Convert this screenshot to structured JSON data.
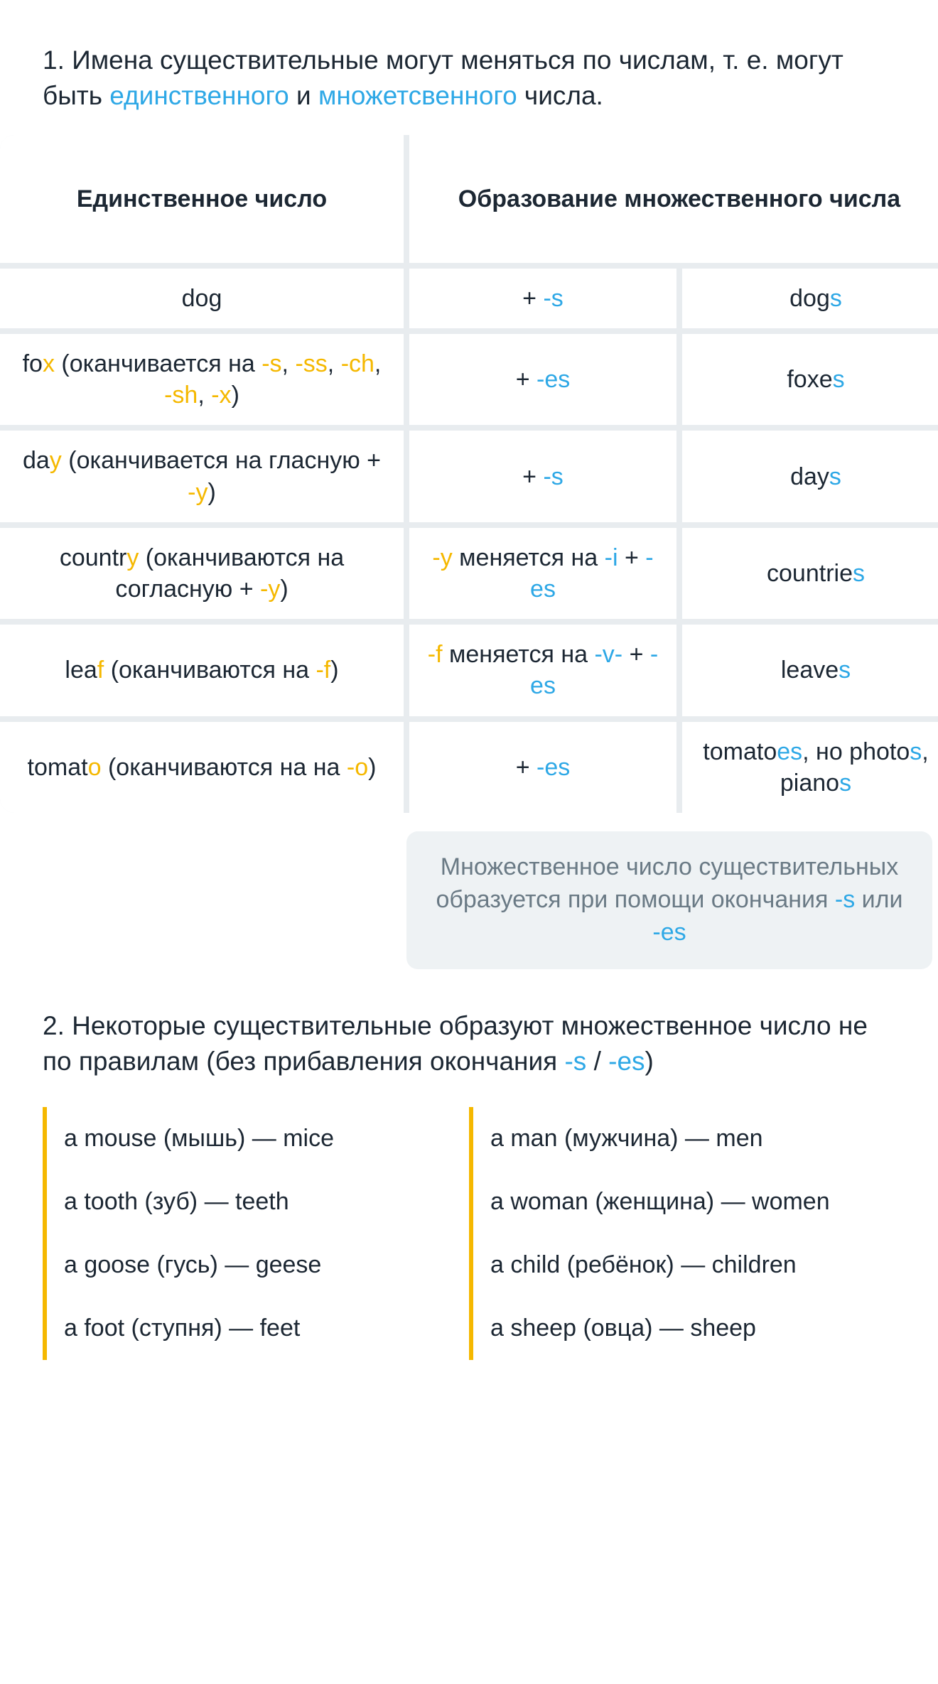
{
  "colors": {
    "highlight_blue": "#2ea8e6",
    "highlight_yellow": "#f5b800",
    "text": "#1c2733",
    "muted": "#6a7a85",
    "note_bg": "#eef2f4",
    "grid_gap": "#e8ecef",
    "bg": "#ffffff"
  },
  "intro": {
    "prefix": "1. Имена существительные могут меняться по числам, т. е. могут быть ",
    "hl1": "единственного",
    "mid": " и ",
    "hl2": "множетсвенного",
    "suffix": " числа."
  },
  "table": {
    "header_left": "Единственное число",
    "header_right": "Образование множественного числа",
    "rows": [
      {
        "singular": {
          "segments": [
            {
              "t": "dog"
            }
          ]
        },
        "rule": {
          "segments": [
            {
              "t": "+ "
            },
            {
              "t": "-s",
              "c": "b"
            }
          ]
        },
        "plural": {
          "segments": [
            {
              "t": "dog"
            },
            {
              "t": "s",
              "c": "b"
            }
          ]
        }
      },
      {
        "singular": {
          "segments": [
            {
              "t": "fo"
            },
            {
              "t": "x",
              "c": "y"
            },
            {
              "t": " (оканчивается на "
            },
            {
              "t": "-s",
              "c": "y"
            },
            {
              "t": ", "
            },
            {
              "t": "-ss",
              "c": "y"
            },
            {
              "t": ", "
            },
            {
              "t": "-ch",
              "c": "y"
            },
            {
              "t": ", "
            },
            {
              "t": "-sh",
              "c": "y"
            },
            {
              "t": ", "
            },
            {
              "t": "-x",
              "c": "y"
            },
            {
              "t": ")"
            }
          ]
        },
        "rule": {
          "segments": [
            {
              "t": "+ "
            },
            {
              "t": "-es",
              "c": "b"
            }
          ]
        },
        "plural": {
          "segments": [
            {
              "t": "foxe"
            },
            {
              "t": "s",
              "c": "b"
            }
          ]
        }
      },
      {
        "singular": {
          "segments": [
            {
              "t": "da"
            },
            {
              "t": "y",
              "c": "y"
            },
            {
              "t": " (оканчивается на гласную + "
            },
            {
              "t": "-y",
              "c": "y"
            },
            {
              "t": ")"
            }
          ]
        },
        "rule": {
          "segments": [
            {
              "t": "+ "
            },
            {
              "t": "-s",
              "c": "b"
            }
          ]
        },
        "plural": {
          "segments": [
            {
              "t": "day"
            },
            {
              "t": "s",
              "c": "b"
            }
          ]
        }
      },
      {
        "singular": {
          "segments": [
            {
              "t": "countr"
            },
            {
              "t": "y",
              "c": "y"
            },
            {
              "t": " (оканчиваются на согласную + "
            },
            {
              "t": "-y",
              "c": "y"
            },
            {
              "t": ")"
            }
          ]
        },
        "rule": {
          "segments": [
            {
              "t": "-y",
              "c": "y"
            },
            {
              "t": " меняется на "
            },
            {
              "t": "-i",
              "c": "b"
            },
            {
              "t": " + "
            },
            {
              "t": "-es",
              "c": "b"
            }
          ]
        },
        "plural": {
          "segments": [
            {
              "t": "countrie"
            },
            {
              "t": "s",
              "c": "b"
            }
          ]
        }
      },
      {
        "singular": {
          "segments": [
            {
              "t": "lea"
            },
            {
              "t": "f",
              "c": "y"
            },
            {
              "t": " (оканчиваются на "
            },
            {
              "t": "-f",
              "c": "y"
            },
            {
              "t": ")"
            }
          ]
        },
        "rule": {
          "segments": [
            {
              "t": "-f",
              "c": "y"
            },
            {
              "t": " меняется на "
            },
            {
              "t": "-v-",
              "c": "b"
            },
            {
              "t": " + "
            },
            {
              "t": "-es",
              "c": "b"
            }
          ]
        },
        "plural": {
          "segments": [
            {
              "t": "leave"
            },
            {
              "t": "s",
              "c": "b"
            }
          ]
        }
      },
      {
        "singular": {
          "segments": [
            {
              "t": "tomat"
            },
            {
              "t": "o",
              "c": "y"
            },
            {
              "t": " (оканчиваются на на "
            },
            {
              "t": "-o",
              "c": "y"
            },
            {
              "t": ")"
            }
          ]
        },
        "rule": {
          "segments": [
            {
              "t": "+ "
            },
            {
              "t": "-es",
              "c": "b"
            }
          ]
        },
        "plural": {
          "segments": [
            {
              "t": "tomato"
            },
            {
              "t": "es",
              "c": "b"
            },
            {
              "t": ", но photo"
            },
            {
              "t": "s",
              "c": "b"
            },
            {
              "t": ", piano"
            },
            {
              "t": "s",
              "c": "b"
            }
          ]
        }
      }
    ]
  },
  "note": {
    "segments": [
      {
        "t": "Множественное число существительных образуется при помощи окончания "
      },
      {
        "t": "-s",
        "c": "b"
      },
      {
        "t": " или "
      },
      {
        "t": "-es",
        "c": "b"
      }
    ]
  },
  "intro2": {
    "segments": [
      {
        "t": "2. Некоторые существительные образуют множественное число не по правилам (без прибавления окончания "
      },
      {
        "t": "-s",
        "c": "b"
      },
      {
        "t": " / "
      },
      {
        "t": "-es",
        "c": "b"
      },
      {
        "t": ")"
      }
    ]
  },
  "irregular": {
    "left": [
      "a mouse (мышь) — mice",
      "a tooth (зуб) — teeth",
      "a goose (гусь) — geese",
      "a foot (ступня) — feet"
    ],
    "right": [
      "a man (мужчина) — men",
      "a woman (женщина) — women",
      "a child (ребёнок) — children",
      "a sheep (овца) — sheep"
    ]
  }
}
